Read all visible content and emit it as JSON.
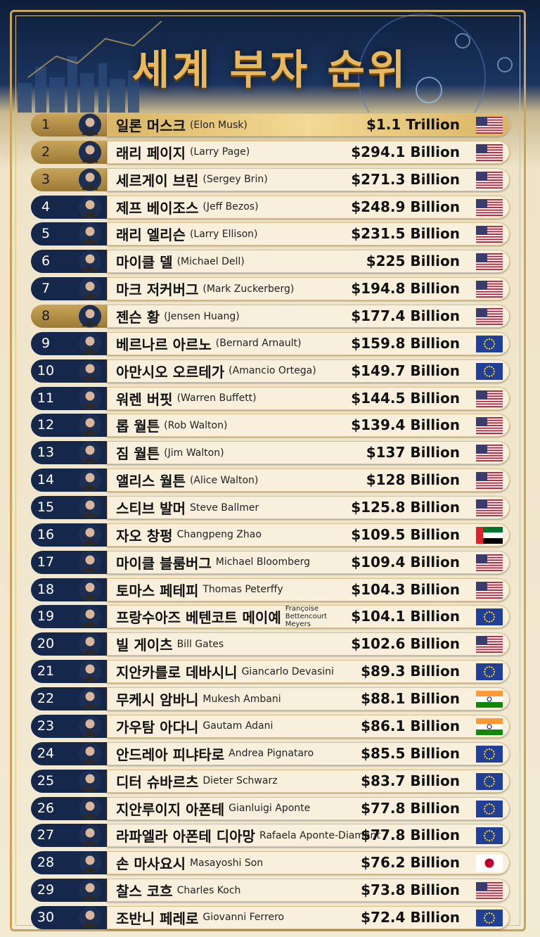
{
  "title": "세계 부자 순위",
  "rows": [
    {
      "rank": 1,
      "name_ko": "일론 머스크",
      "name_en": "(Elon Musk)",
      "net_worth": "$1.1 Trillion"
    },
    {
      "rank": 2,
      "name_ko": "래리 페이지",
      "name_en": "(Larry Page)",
      "net_worth": "$294.1 Billion"
    },
    {
      "rank": 3,
      "name_ko": "세르게이 브린",
      "name_en": "(Sergey Brin)",
      "net_worth": "$271.3 Billion"
    },
    {
      "rank": 4,
      "name_ko": "제프 베이조스",
      "name_en": "(Jeff Bezos)",
      "net_worth": "$248.9 Billion"
    },
    {
      "rank": 5,
      "name_ko": "래리 엘리슨",
      "name_en": "(Larry Ellison)",
      "net_worth": "$231.5 Billion"
    },
    {
      "rank": 6,
      "name_ko": "마이클 델",
      "name_en": "(Michael Dell)",
      "net_worth": "$225 Billion"
    },
    {
      "rank": 7,
      "name_ko": "마크 저커버그",
      "name_en": "(Mark Zuckerberg)",
      "net_worth": "$194.8 Billion"
    },
    {
      "rank": 8,
      "name_ko": "젠슨 황",
      "name_en": "(Jensen Huang)",
      "net_worth": "$177.4 Billion"
    },
    {
      "rank": 9,
      "name_ko": "베르나르 아르노",
      "name_en": "(Bernard Arnault)",
      "net_worth": "$159.8 Billion"
    },
    {
      "rank": 10,
      "name_ko": "아만시오 오르테가",
      "name_en": "(Amancio Ortega)",
      "net_worth": "$149.7 Billion"
    },
    {
      "rank": 11,
      "name_ko": "워렌 버핏",
      "name_en": "(Warren Buffett)",
      "net_worth": "$144.5 Billion"
    },
    {
      "rank": 12,
      "name_ko": "롭 월튼",
      "name_en": "(Rob Walton)",
      "net_worth": "$139.4 Billion"
    },
    {
      "rank": 13,
      "name_ko": "짐 월튼",
      "name_en": "(Jim Walton)",
      "net_worth": "$137 Billion"
    },
    {
      "rank": 14,
      "name_ko": "앨리스 월튼",
      "name_en": "(Alice Walton)",
      "net_worth": "$128 Billion"
    },
    {
      "rank": 15,
      "name_ko": "스티브 발머",
      "name_en": "Steve Ballmer",
      "net_worth": "$125.8 Billion"
    },
    {
      "rank": 16,
      "name_ko": "자오 창펑",
      "name_en": "Changpeng Zhao",
      "net_worth": "$109.5 Billion"
    },
    {
      "rank": 17,
      "name_ko": "마이클 블룸버그",
      "name_en": "Michael Bloomberg",
      "net_worth": "$109.4 Billion"
    },
    {
      "rank": 18,
      "name_ko": "토마스 페테피",
      "name_en": "Thomas Peterffy",
      "net_worth": "$104.3 Billion"
    },
    {
      "rank": 19,
      "name_ko": "프랑수아즈 베텐코트 메이예",
      "name_en": "Françoise Bettencourt Meyers",
      "net_worth": "$104.1 Billion"
    },
    {
      "rank": 20,
      "name_ko": "빌 게이츠",
      "name_en": "Bill Gates",
      "net_worth": "$102.6 Billion"
    },
    {
      "rank": 21,
      "name_ko": "지안카를로 데바시니",
      "name_en": "Giancarlo Devasini",
      "net_worth": "$89.3 Billion"
    },
    {
      "rank": 22,
      "name_ko": "무케시 암바니",
      "name_en": "Mukesh Ambani",
      "net_worth": "$88.1 Billion"
    },
    {
      "rank": 23,
      "name_ko": "가우탐 아다니",
      "name_en": "Gautam Adani",
      "net_worth": "$86.1 Billion"
    },
    {
      "rank": 24,
      "name_ko": "안드레아 피냐타로",
      "name_en": "Andrea Pignataro",
      "net_worth": "$85.5 Billion"
    },
    {
      "rank": 25,
      "name_ko": "디터 슈바르츠",
      "name_en": "Dieter Schwarz",
      "net_worth": "$83.7 Billion"
    },
    {
      "rank": 26,
      "name_ko": "지안루이지 아폰테",
      "name_en": "Gianluigi Aponte",
      "net_worth": "$77.8 Billion"
    },
    {
      "rank": 27,
      "name_ko": "라파엘라 아폰테 디아망",
      "name_en": "Rafaela Aponte-Diamant",
      "net_worth": "$77.8 Billion"
    },
    {
      "rank": 28,
      "name_ko": "손 마사요시",
      "name_en": "Masayoshi Son",
      "net_worth": "$76.2 Billion"
    },
    {
      "rank": 29,
      "name_ko": "찰스 코흐",
      "name_en": "Charles Koch",
      "net_worth": "$73.8 Billion"
    },
    {
      "rank": 30,
      "name_ko": "조반니 페레로",
      "name_en": "Giovanni Ferrero",
      "net_worth": "$72.4 Billion"
    }
  ]
}
